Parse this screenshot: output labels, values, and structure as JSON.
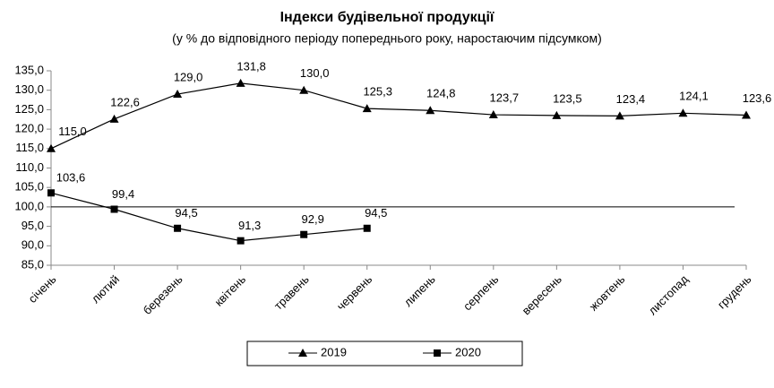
{
  "chart_data": {
    "type": "line",
    "title": "Індекси будівельної продукції",
    "subtitle": "(у % до відповідного періоду попереднього року, наростаючим підсумком)",
    "categories": [
      "січень",
      "лютий",
      "березень",
      "квітень",
      "травень",
      "червень",
      "липень",
      "серпень",
      "вересень",
      "жовтень",
      "листопад",
      "грудень"
    ],
    "series": [
      {
        "name": "2019",
        "color": "#000000",
        "marker": "triangle",
        "values": [
          115.0,
          122.6,
          129.0,
          131.8,
          130.0,
          125.3,
          124.8,
          123.7,
          123.5,
          123.4,
          124.1,
          123.6
        ],
        "value_labels": [
          "115,0",
          "122,6",
          "129,0",
          "131,8",
          "130,0",
          "125,3",
          "124,8",
          "123,7",
          "123,5",
          "123,4",
          "124,1",
          "123,6"
        ]
      },
      {
        "name": "2020",
        "color": "#000000",
        "marker": "square",
        "values": [
          103.6,
          99.4,
          94.5,
          91.3,
          92.9,
          94.5,
          null,
          null,
          null,
          null,
          null,
          null
        ],
        "value_labels": [
          "103,6",
          "99,4",
          "94,5",
          "91,3",
          "92,9",
          "94,5",
          null,
          null,
          null,
          null,
          null,
          null
        ]
      }
    ],
    "reference_line": 100,
    "ylim": [
      85,
      135
    ],
    "yticks": [
      {
        "value": 85,
        "label": "85,0"
      },
      {
        "value": 90,
        "label": "90,0"
      },
      {
        "value": 95,
        "label": "95,0"
      },
      {
        "value": 100,
        "label": "100,0"
      },
      {
        "value": 105,
        "label": "105,0"
      },
      {
        "value": 110,
        "label": "110,0"
      },
      {
        "value": 115,
        "label": "115,0"
      },
      {
        "value": 120,
        "label": "120,0"
      },
      {
        "value": 125,
        "label": "125,0"
      },
      {
        "value": 130,
        "label": "130,0"
      },
      {
        "value": 135,
        "label": "135,0"
      }
    ],
    "legend": "bottom"
  }
}
